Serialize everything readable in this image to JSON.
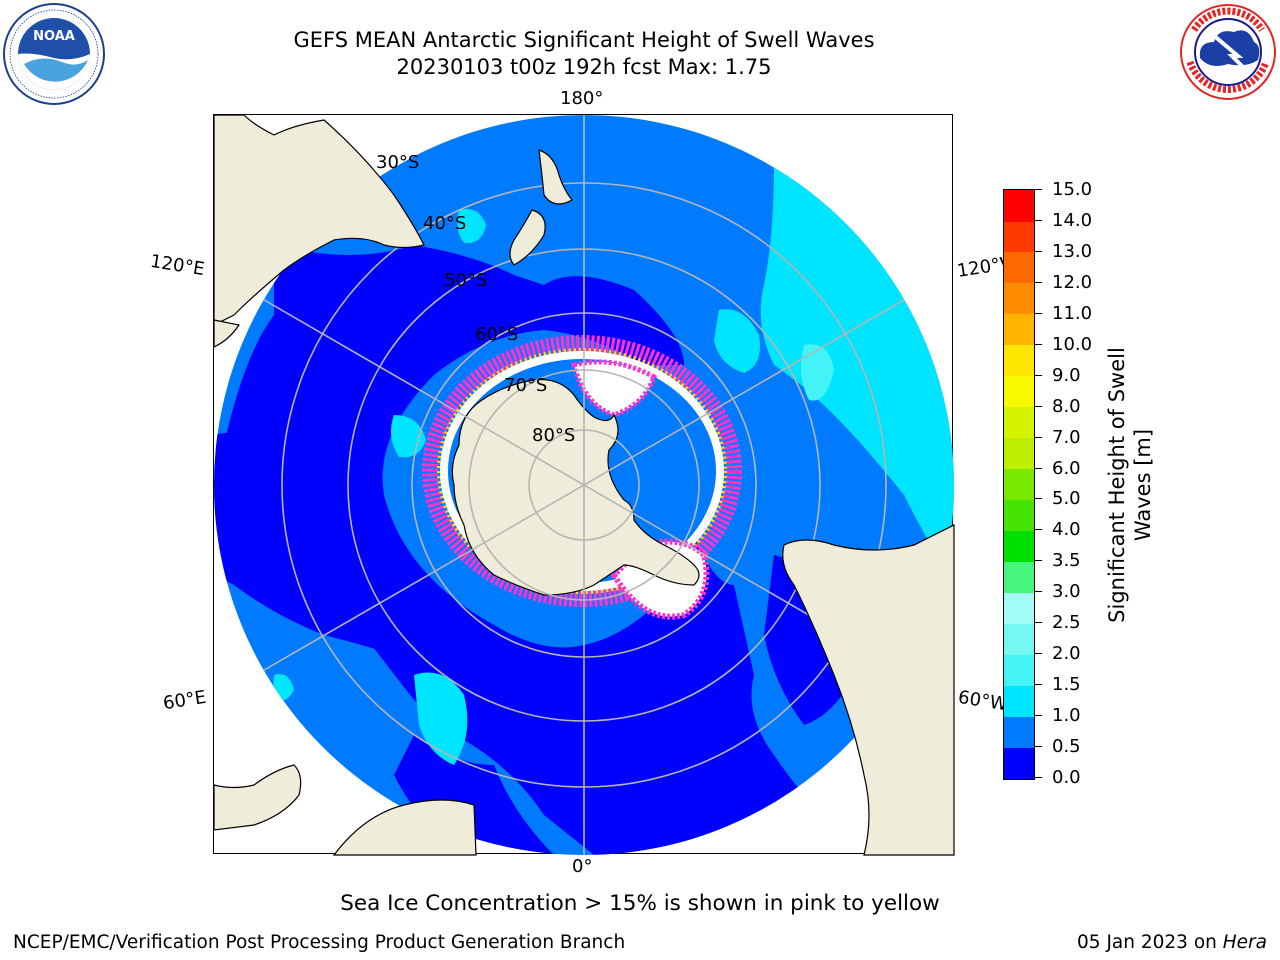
{
  "title": {
    "line1": "GEFS MEAN Antarctic Significant Height of Swell Waves",
    "line2": "20230103 t00z 192h fcst   Max: 1.75"
  },
  "map": {
    "projection": "south polar stereographic",
    "lon_labels": {
      "top": "180°",
      "bottom": "0°",
      "left_upper": "120°E",
      "left_lower": "60°E",
      "right_upper": "120°W",
      "right_lower": "60°W"
    },
    "lat_labels": [
      "30°S",
      "40°S",
      "50°S",
      "60°S",
      "70°S",
      "80°S"
    ],
    "colors": {
      "land": "#efedd9",
      "ice_cap": "#efedd9",
      "grid": "#b5b5b5",
      "coast": "#000000"
    }
  },
  "colorbar": {
    "label": "Significant Height of Swell Waves [m]",
    "ticks": [
      "0.0",
      "0.5",
      "1.0",
      "1.5",
      "2.0",
      "2.5",
      "3.0",
      "3.5",
      "4.0",
      "5.0",
      "6.0",
      "7.0",
      "8.0",
      "9.0",
      "10.0",
      "11.0",
      "12.0",
      "13.0",
      "14.0",
      "15.0"
    ],
    "bins": [
      {
        "range": "0.0-0.5",
        "color": "#0000ff"
      },
      {
        "range": "0.5-1.0",
        "color": "#007bff"
      },
      {
        "range": "1.0-1.5",
        "color": "#00e5ff"
      },
      {
        "range": "1.5-2.0",
        "color": "#44f3f5"
      },
      {
        "range": "2.0-2.5",
        "color": "#77f7f1"
      },
      {
        "range": "2.5-3.0",
        "color": "#a3fbf7"
      },
      {
        "range": "3.0-3.5",
        "color": "#46f57c"
      },
      {
        "range": "3.5-4.0",
        "color": "#00e000"
      },
      {
        "range": "4.0-5.0",
        "color": "#45e405"
      },
      {
        "range": "5.0-6.0",
        "color": "#7ae900"
      },
      {
        "range": "6.0-7.0",
        "color": "#bfef00"
      },
      {
        "range": "7.0-8.0",
        "color": "#d4f400"
      },
      {
        "range": "8.0-9.0",
        "color": "#f8fa00"
      },
      {
        "range": "9.0-10.0",
        "color": "#ffe600"
      },
      {
        "range": "10.0-11.0",
        "color": "#ffb400"
      },
      {
        "range": "11.0-12.0",
        "color": "#ff8c00"
      },
      {
        "range": "12.0-13.0",
        "color": "#ff6a00"
      },
      {
        "range": "13.0-14.0",
        "color": "#ff3a00"
      },
      {
        "range": "14.0-15.0",
        "color": "#ff0000"
      }
    ]
  },
  "footnote": "Sea Ice Concentration > 15% is shown in pink to yellow",
  "credits": {
    "left": "NCEP/EMC/Verification Post Processing Product Generation Branch",
    "right_prefix": "05 Jan 2023 on ",
    "right_host": "Hera"
  },
  "logos": {
    "left": {
      "name": "NOAA",
      "ring_text": "NATIONAL OCEANIC AND ATMOSPHERIC ADMINISTRATION · U.S. DEPARTMENT OF COMMERCE"
    },
    "right": {
      "name": "NATIONAL WEATHER SERVICE"
    }
  }
}
